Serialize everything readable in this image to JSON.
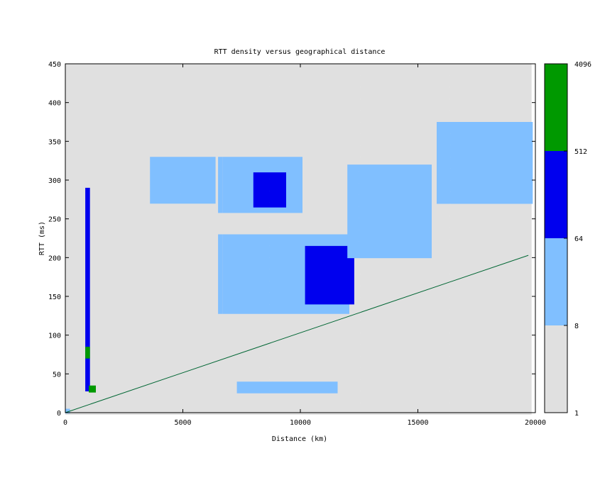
{
  "chart_data": {
    "type": "heatmap",
    "title": "RTT density versus geographical distance",
    "xlabel": "Distance (km)",
    "ylabel": "RTT (ms)",
    "xlim": [
      0,
      20000
    ],
    "ylim": [
      0,
      450
    ],
    "x_ticks": [
      0,
      5000,
      10000,
      15000,
      20000
    ],
    "y_ticks": [
      0,
      50,
      100,
      150,
      200,
      250,
      300,
      350,
      400,
      450
    ],
    "grid": false,
    "legend": "colorbar-right",
    "colorbar": {
      "scale": "log",
      "range": [
        1,
        4096
      ],
      "tick_labels": [
        "1",
        "8",
        "64",
        "512",
        "4096"
      ],
      "bands": [
        {
          "from": 1,
          "to": 8,
          "color": "#e0e0e0"
        },
        {
          "from": 8,
          "to": 64,
          "color": "#80bfff"
        },
        {
          "from": 64,
          "to": 512,
          "color": "#0000ee"
        },
        {
          "from": 512,
          "to": 4096,
          "color": "#009900"
        }
      ]
    },
    "reference_line": {
      "color": "#006633",
      "points": [
        [
          0,
          0
        ],
        [
          19700,
          203
        ]
      ]
    },
    "density_clusters": [
      {
        "x": [
          0,
          19800
        ],
        "y": [
          0,
          450
        ],
        "count": 2
      },
      {
        "x": [
          6500,
          12000
        ],
        "y": [
          130,
          230
        ],
        "count": 20
      },
      {
        "x": [
          10200,
          12200
        ],
        "y": [
          140,
          215
        ],
        "count": 70
      },
      {
        "x": [
          6500,
          10000
        ],
        "y": [
          260,
          330
        ],
        "count": 25
      },
      {
        "x": [
          8000,
          9300
        ],
        "y": [
          265,
          310
        ],
        "count": 120
      },
      {
        "x": [
          15800,
          19800
        ],
        "y": [
          270,
          375
        ],
        "count": 30
      },
      {
        "x": [
          3600,
          6300
        ],
        "y": [
          270,
          330
        ],
        "count": 12
      },
      {
        "x": [
          12000,
          15500
        ],
        "y": [
          200,
          320
        ],
        "count": 10
      },
      {
        "x": [
          7300,
          11500
        ],
        "y": [
          25,
          40
        ],
        "count": 15
      },
      {
        "x": [
          850,
          1000
        ],
        "y": [
          30,
          290
        ],
        "count": 90
      },
      {
        "x": [
          850,
          1000
        ],
        "y": [
          70,
          85
        ],
        "count": 900
      },
      {
        "x": [
          1000,
          1200
        ],
        "y": [
          28,
          35
        ],
        "count": 900
      },
      {
        "x": [
          0,
          150
        ],
        "y": [
          0,
          5
        ],
        "count": 60
      }
    ]
  }
}
